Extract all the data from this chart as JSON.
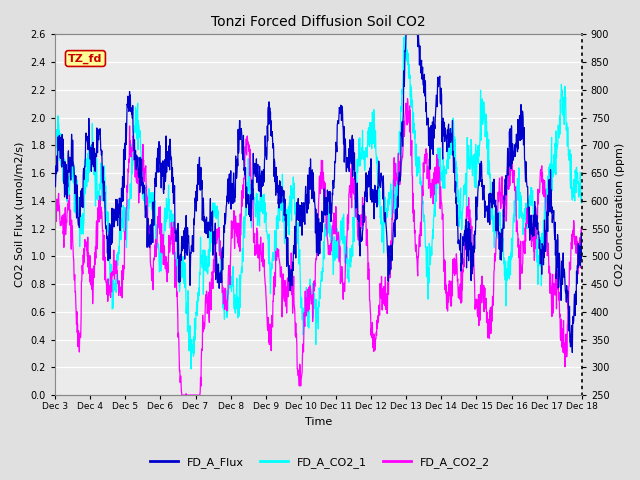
{
  "title": "Tonzi Forced Diffusion Soil CO2",
  "xlabel": "Time",
  "ylabel_left": "CO2 Soil Flux (umol/m2/s)",
  "ylabel_right": "CO2 Concentration (ppm)",
  "ylim_left": [
    0.0,
    2.6
  ],
  "ylim_right": [
    250,
    900
  ],
  "yticks_left": [
    0.0,
    0.2,
    0.4,
    0.6,
    0.8,
    1.0,
    1.2,
    1.4,
    1.6,
    1.8,
    2.0,
    2.2,
    2.4,
    2.6
  ],
  "yticks_right": [
    250,
    300,
    350,
    400,
    450,
    500,
    550,
    600,
    650,
    700,
    750,
    800,
    850,
    900
  ],
  "xtick_labels": [
    "Dec 3",
    "Dec 4",
    "Dec 5",
    "Dec 6",
    "Dec 7",
    "Dec 8",
    "Dec 9",
    "Dec 10",
    "Dec 11",
    "Dec 12",
    "Dec 13",
    "Dec 14",
    "Dec 15",
    "Dec 16",
    "Dec 17",
    "Dec 18"
  ],
  "legend_labels": [
    "FD_A_Flux",
    "FD_A_CO2_1",
    "FD_A_CO2_2"
  ],
  "colors": {
    "FD_A_Flux": "#0000CD",
    "FD_A_CO2_1": "#00FFFF",
    "FD_A_CO2_2": "#FF00FF"
  },
  "tag_text": "TZ_fd",
  "tag_bg": "#FFFF99",
  "tag_border": "#CC0000",
  "fig_facecolor": "#E0E0E0",
  "plot_bg": "#EBEBEB",
  "grid_color": "#FFFFFF",
  "n_points": 1500
}
